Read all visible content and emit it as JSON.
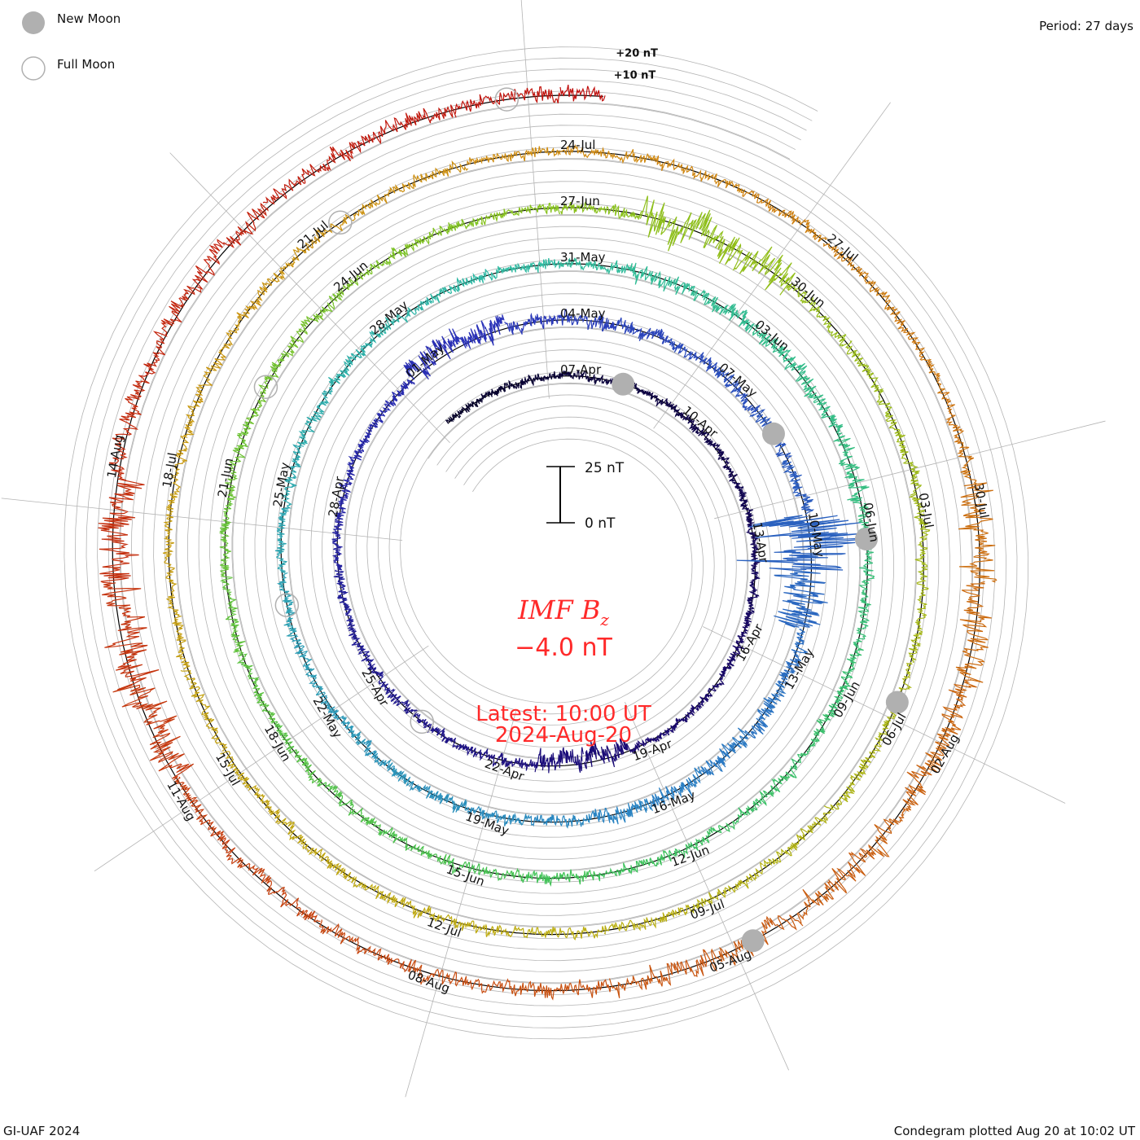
{
  "header": {
    "period": "Period: 27 days"
  },
  "legend": {
    "new_moon": "New Moon",
    "full_moon": "Full Moon"
  },
  "footer": {
    "credit": "GI-UAF 2024",
    "plotted": "Condegram plotted Aug 20 at 10:02 UT"
  },
  "center": {
    "title": "IMF B",
    "title_sub": "z",
    "value": "−4.0 nT",
    "latest": "Latest: 10:00 UT",
    "latest_date": "2024-Aug-20",
    "scale_top": "25 nT",
    "scale_bottom": "0 nT"
  },
  "chart_data": {
    "type": "line",
    "subtype": "condegram-spiral",
    "title": "IMF Bz",
    "units": "nT",
    "period_days": 27,
    "start_date": "2024-04-04",
    "end_date": "2024-08-20T10:00",
    "latest_value": -4.0,
    "scale_bar_nT": 25,
    "offset_labels": [
      "+20 nT",
      "+10 nT"
    ],
    "date_labels": [
      "07-Apr",
      "10-Apr",
      "13-Apr",
      "16-Apr",
      "19-Apr",
      "22-Apr",
      "25-Apr",
      "28-Apr",
      "01-May",
      "04-May",
      "07-May",
      "10-May",
      "13-May",
      "16-May",
      "19-May",
      "22-May",
      "25-May",
      "28-May",
      "31-May",
      "03-Jun",
      "06-Jun",
      "09-Jun",
      "12-Jun",
      "15-Jun",
      "18-Jun",
      "21-Jun",
      "24-Jun",
      "27-Jun",
      "30-Jun",
      "03-Jul",
      "06-Jul",
      "09-Jul",
      "12-Jul",
      "15-Jul",
      "18-Jul",
      "21-Jul",
      "24-Jul",
      "27-Jul",
      "30-Jul",
      "02-Aug",
      "05-Aug",
      "08-Aug",
      "11-Aug",
      "14-Aug"
    ],
    "new_moons": [
      "08-Apr",
      "08-May",
      "06-Jun",
      "05-Jul",
      "04-Aug"
    ],
    "full_moons": [
      "23-Apr",
      "23-May",
      "22-Jun",
      "21-Jul",
      "19-Aug"
    ],
    "bz_segments": [
      {
        "from": "04-Apr",
        "to": "18-Apr",
        "mean": 0,
        "spread": 3
      },
      {
        "from": "19-Apr",
        "to": "20-Apr",
        "mean": -2,
        "spread": 8
      },
      {
        "from": "21-Apr",
        "to": "30-Apr",
        "mean": 0,
        "spread": 3.5
      },
      {
        "from": "01-May",
        "to": "02-May",
        "mean": 3,
        "spread": 8
      },
      {
        "from": "03-May",
        "to": "09-May",
        "mean": 0,
        "spread": 5
      },
      {
        "from": "10-May",
        "to": "10-May",
        "mean": 0,
        "spread": 35
      },
      {
        "from": "11-May",
        "to": "11-May",
        "mean": -4,
        "spread": 18
      },
      {
        "from": "12-May",
        "to": "16-May",
        "mean": 0,
        "spread": 6
      },
      {
        "from": "17-May",
        "to": "31-May",
        "mean": 0,
        "spread": 4
      },
      {
        "from": "01-Jun",
        "to": "05-Jun",
        "mean": 0,
        "spread": 6
      },
      {
        "from": "06-Jun",
        "to": "27-Jun",
        "mean": 0,
        "spread": 4
      },
      {
        "from": "28-Jun",
        "to": "29-Jun",
        "mean": 0,
        "spread": 14
      },
      {
        "from": "30-Jun",
        "to": "29-Jul",
        "mean": 0,
        "spread": 4
      },
      {
        "from": "30-Jul",
        "to": "31-Jul",
        "mean": 0,
        "spread": 10
      },
      {
        "from": "01-Aug",
        "to": "05-Aug",
        "mean": 0,
        "spread": 8
      },
      {
        "from": "06-Aug",
        "to": "10-Aug",
        "mean": 0,
        "spread": 5
      },
      {
        "from": "11-Aug",
        "to": "13-Aug",
        "mean": -2,
        "spread": 14
      },
      {
        "from": "14-Aug",
        "to": "20-Aug",
        "mean": 1,
        "spread": 6
      }
    ],
    "colors": [
      "#05002a",
      "#1a0870",
      "#2a30b8",
      "#2a82c4",
      "#2ebaa4",
      "#3cc25a",
      "#86c21c",
      "#bcae10",
      "#d08a10",
      "#c84e10",
      "#c00c0c"
    ],
    "moon_color": "#b0b0b0",
    "grid_color": "#b4b4b4"
  }
}
